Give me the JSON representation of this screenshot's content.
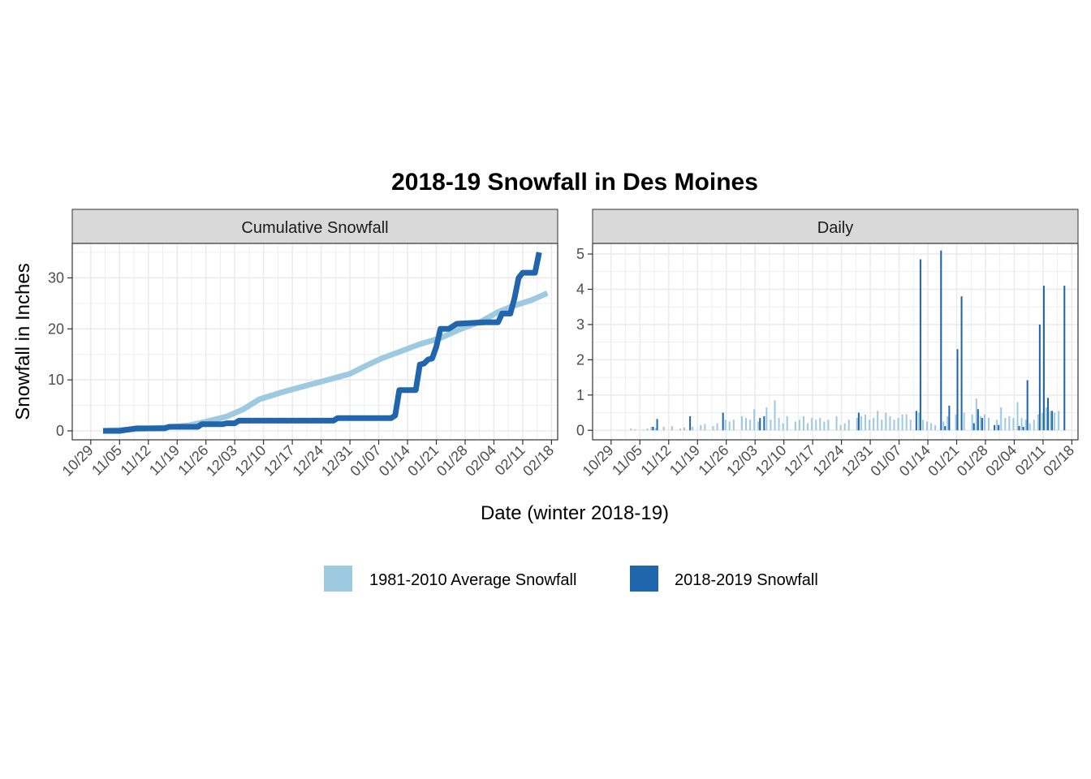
{
  "title": "2018-19 Snowfall in Des Moines",
  "xlabel": "Date (winter 2018-19)",
  "ylabel": "Snowfall in Inches",
  "colors": {
    "average": "#9ecae1",
    "current": "#2166ac",
    "strip": "#d9d9d9",
    "grid": "#ebebeb"
  },
  "legend": {
    "placement": "bottom",
    "items": [
      {
        "label": "1981-2010 Average Snowfall",
        "color": "#9ecae1"
      },
      {
        "label": "2018-2019 Snowfall",
        "color": "#2166ac"
      }
    ]
  },
  "x_ticks": [
    "10/29",
    "11/05",
    "11/12",
    "11/19",
    "11/26",
    "12/03",
    "12/10",
    "12/17",
    "12/24",
    "12/31",
    "01/07",
    "01/14",
    "01/21",
    "01/28",
    "02/04",
    "02/11",
    "02/18"
  ],
  "chart_data": [
    {
      "type": "line",
      "panel": "Cumulative Snowfall",
      "x_range": [
        "2018-10-29",
        "2019-02-18"
      ],
      "ylim": [
        0,
        35
      ],
      "y_ticks": [
        0,
        10,
        20,
        30
      ],
      "grid": true,
      "series": [
        {
          "name": "1981-2010 Average Snowfall",
          "points": [
            [
              "2018-11-01",
              0
            ],
            [
              "2018-11-08",
              0.3
            ],
            [
              "2018-11-15",
              0.6
            ],
            [
              "2018-11-22",
              1.1
            ],
            [
              "2018-11-26",
              1.8
            ],
            [
              "2018-12-01",
              2.8
            ],
            [
              "2018-12-05",
              4.2
            ],
            [
              "2018-12-09",
              6.2
            ],
            [
              "2018-12-15",
              7.7
            ],
            [
              "2018-12-21",
              9.0
            ],
            [
              "2018-12-27",
              10.3
            ],
            [
              "2018-12-31",
              11.2
            ],
            [
              "2019-01-04",
              12.8
            ],
            [
              "2019-01-08",
              14.3
            ],
            [
              "2019-01-12",
              15.5
            ],
            [
              "2019-01-17",
              17.0
            ],
            [
              "2019-01-22",
              18.2
            ],
            [
              "2019-01-27",
              20.0
            ],
            [
              "2019-02-01",
              21.5
            ],
            [
              "2019-02-05",
              23.3
            ],
            [
              "2019-02-09",
              24.6
            ],
            [
              "2019-02-13",
              25.6
            ],
            [
              "2019-02-17",
              27.0
            ]
          ]
        },
        {
          "name": "2018-2019 Snowfall",
          "points": [
            [
              "2018-11-01",
              0
            ],
            [
              "2018-11-05",
              0
            ],
            [
              "2018-11-09",
              0.5
            ],
            [
              "2018-11-16",
              0.5
            ],
            [
              "2018-11-17",
              0.8
            ],
            [
              "2018-11-24",
              0.8
            ],
            [
              "2018-11-25",
              1.3
            ],
            [
              "2018-11-30",
              1.3
            ],
            [
              "2018-12-01",
              1.5
            ],
            [
              "2018-12-03",
              1.5
            ],
            [
              "2018-12-04",
              2.0
            ],
            [
              "2018-12-27",
              2.0
            ],
            [
              "2018-12-28",
              2.5
            ],
            [
              "2019-01-10",
              2.5
            ],
            [
              "2019-01-11",
              3.0
            ],
            [
              "2019-01-12",
              8.0
            ],
            [
              "2019-01-16",
              8.0
            ],
            [
              "2019-01-17",
              13.0
            ],
            [
              "2019-01-18",
              13.2
            ],
            [
              "2019-01-19",
              14.0
            ],
            [
              "2019-01-20",
              14.2
            ],
            [
              "2019-01-21",
              16.5
            ],
            [
              "2019-01-22",
              20.0
            ],
            [
              "2019-01-24",
              20.0
            ],
            [
              "2019-01-26",
              21.0
            ],
            [
              "2019-02-02",
              21.3
            ],
            [
              "2019-02-05",
              21.3
            ],
            [
              "2019-02-06",
              23.0
            ],
            [
              "2019-02-08",
              23.0
            ],
            [
              "2019-02-09",
              26.0
            ],
            [
              "2019-02-10",
              30.0
            ],
            [
              "2019-02-11",
              31.0
            ],
            [
              "2019-02-14",
              31.0
            ],
            [
              "2019-02-15",
              35.0
            ]
          ]
        }
      ]
    },
    {
      "type": "bar",
      "panel": "Daily",
      "x_range": [
        "2018-10-29",
        "2019-02-18"
      ],
      "ylim": [
        0,
        5.3
      ],
      "y_ticks": [
        0,
        1,
        2,
        3,
        4,
        5
      ],
      "grid": true,
      "series": [
        {
          "name": "1981-2010 Average Snowfall",
          "points": [
            [
              "2018-11-03",
              0.05
            ],
            [
              "2018-11-04",
              0.03
            ],
            [
              "2018-11-06",
              0.02
            ],
            [
              "2018-11-07",
              0.05
            ],
            [
              "2018-11-08",
              0.1
            ],
            [
              "2018-11-09",
              0.06
            ],
            [
              "2018-11-11",
              0.1
            ],
            [
              "2018-11-13",
              0.12
            ],
            [
              "2018-11-15",
              0.05
            ],
            [
              "2018-11-16",
              0.08
            ],
            [
              "2018-11-18",
              0.1
            ],
            [
              "2018-11-20",
              0.15
            ],
            [
              "2018-11-21",
              0.18
            ],
            [
              "2018-11-23",
              0.12
            ],
            [
              "2018-11-24",
              0.2
            ],
            [
              "2018-11-26",
              0.3
            ],
            [
              "2018-11-27",
              0.25
            ],
            [
              "2018-11-28",
              0.3
            ],
            [
              "2018-11-30",
              0.4
            ],
            [
              "2018-12-01",
              0.35
            ],
            [
              "2018-12-02",
              0.3
            ],
            [
              "2018-12-03",
              0.6
            ],
            [
              "2018-12-04",
              0.25
            ],
            [
              "2018-12-06",
              0.65
            ],
            [
              "2018-12-07",
              0.3
            ],
            [
              "2018-12-08",
              0.85
            ],
            [
              "2018-12-09",
              0.35
            ],
            [
              "2018-12-10",
              0.2
            ],
            [
              "2018-12-11",
              0.4
            ],
            [
              "2018-12-13",
              0.25
            ],
            [
              "2018-12-14",
              0.3
            ],
            [
              "2018-12-15",
              0.4
            ],
            [
              "2018-12-16",
              0.2
            ],
            [
              "2018-12-17",
              0.35
            ],
            [
              "2018-12-18",
              0.3
            ],
            [
              "2018-12-19",
              0.35
            ],
            [
              "2018-12-20",
              0.25
            ],
            [
              "2018-12-21",
              0.3
            ],
            [
              "2018-12-23",
              0.4
            ],
            [
              "2018-12-24",
              0.15
            ],
            [
              "2018-12-25",
              0.2
            ],
            [
              "2018-12-26",
              0.3
            ],
            [
              "2018-12-28",
              0.35
            ],
            [
              "2018-12-29",
              0.4
            ],
            [
              "2018-12-30",
              0.45
            ],
            [
              "2018-12-31",
              0.3
            ],
            [
              "2019-01-01",
              0.35
            ],
            [
              "2019-01-02",
              0.55
            ],
            [
              "2019-01-03",
              0.3
            ],
            [
              "2019-01-04",
              0.5
            ],
            [
              "2019-01-05",
              0.4
            ],
            [
              "2019-01-06",
              0.3
            ],
            [
              "2019-01-07",
              0.35
            ],
            [
              "2019-01-08",
              0.45
            ],
            [
              "2019-01-09",
              0.45
            ],
            [
              "2019-01-10",
              0.3
            ],
            [
              "2019-01-12",
              0.5
            ],
            [
              "2019-01-13",
              0.3
            ],
            [
              "2019-01-14",
              0.25
            ],
            [
              "2019-01-15",
              0.2
            ],
            [
              "2019-01-16",
              0.15
            ],
            [
              "2019-01-18",
              0.25
            ],
            [
              "2019-01-19",
              0.4
            ],
            [
              "2019-01-21",
              0.45
            ],
            [
              "2019-01-23",
              0.5
            ],
            [
              "2019-01-25",
              0.45
            ],
            [
              "2019-01-26",
              0.9
            ],
            [
              "2019-01-27",
              0.4
            ],
            [
              "2019-01-28",
              0.45
            ],
            [
              "2019-01-29",
              0.35
            ],
            [
              "2019-01-31",
              0.3
            ],
            [
              "2019-02-01",
              0.65
            ],
            [
              "2019-02-02",
              0.35
            ],
            [
              "2019-02-03",
              0.4
            ],
            [
              "2019-02-04",
              0.35
            ],
            [
              "2019-02-05",
              0.8
            ],
            [
              "2019-02-06",
              0.35
            ],
            [
              "2019-02-07",
              0.3
            ],
            [
              "2019-02-08",
              0.2
            ],
            [
              "2019-02-09",
              0.3
            ],
            [
              "2019-02-10",
              0.45
            ],
            [
              "2019-02-11",
              0.5
            ],
            [
              "2019-02-12",
              0.65
            ],
            [
              "2019-02-13",
              0.55
            ],
            [
              "2019-02-14",
              0.5
            ],
            [
              "2019-02-15",
              0.55
            ]
          ]
        },
        {
          "name": "2018-2019 Snowfall",
          "points": [
            [
              "2018-11-08",
              0.1
            ],
            [
              "2018-11-09",
              0.32
            ],
            [
              "2018-11-17",
              0.4
            ],
            [
              "2018-11-25",
              0.5
            ],
            [
              "2018-12-04",
              0.35
            ],
            [
              "2018-12-05",
              0.4
            ],
            [
              "2018-12-28",
              0.5
            ],
            [
              "2019-01-11",
              0.55
            ],
            [
              "2019-01-12",
              4.85
            ],
            [
              "2019-01-17",
              5.1
            ],
            [
              "2019-01-18",
              0.12
            ],
            [
              "2019-01-19",
              0.7
            ],
            [
              "2019-01-21",
              2.3
            ],
            [
              "2019-01-22",
              3.8
            ],
            [
              "2019-01-25",
              0.2
            ],
            [
              "2019-01-26",
              0.6
            ],
            [
              "2019-01-27",
              0.35
            ],
            [
              "2019-01-30",
              0.15
            ],
            [
              "2019-01-31",
              0.15
            ],
            [
              "2019-02-05",
              0.12
            ],
            [
              "2019-02-06",
              0.1
            ],
            [
              "2019-02-07",
              1.42
            ],
            [
              "2019-02-10",
              3.0
            ],
            [
              "2019-02-11",
              4.1
            ],
            [
              "2019-02-12",
              0.92
            ],
            [
              "2019-02-13",
              0.55
            ],
            [
              "2019-02-16",
              4.1
            ]
          ]
        }
      ]
    }
  ]
}
